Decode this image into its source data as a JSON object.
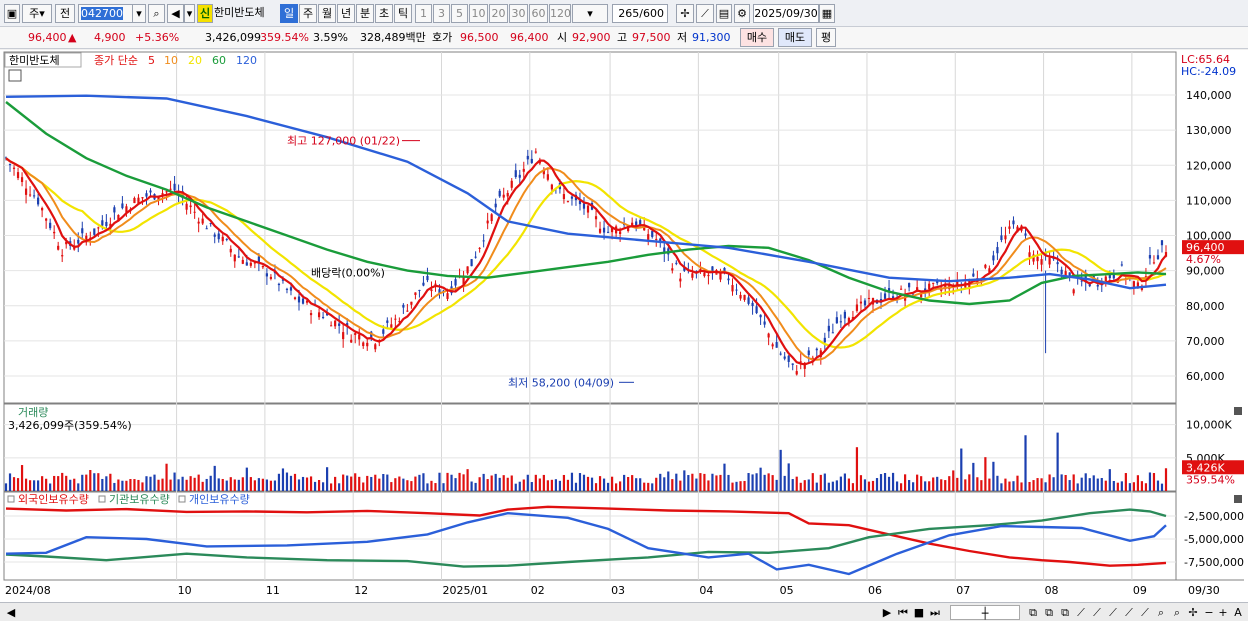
{
  "toolbar": {
    "period_select": "주",
    "prev_button": "전",
    "code_value": "042700",
    "new_badge": "신",
    "stock_name": "한미반도체",
    "tabs": [
      "일",
      "주",
      "월",
      "년",
      "분",
      "초",
      "틱"
    ],
    "active_tab": "일",
    "intervals": [
      "1",
      "3",
      "5",
      "10",
      "20",
      "30",
      "60",
      "120"
    ],
    "count_value": "265",
    "count_total": "/600",
    "date_value": "2025/09/30"
  },
  "quote": {
    "price": "96,400",
    "change": "4,900",
    "change_pct": "+5.36%",
    "volume": "3,426,099",
    "volume_ratio": "359.54%",
    "turnover": "3.59%",
    "amount": "328,489백만",
    "ask_label": "호가",
    "ask": "96,500",
    "bid": "96,400",
    "open_label": "시",
    "open": "92,900",
    "high_label": "고",
    "high": "97,500",
    "low_label": "저",
    "low": "91,300",
    "buy_button": "매수",
    "sell_button": "매도",
    "eval_button": "평"
  },
  "price_panel": {
    "name_tag": "한미반도체",
    "legend_prefix": "종가 단순",
    "ma_labels": [
      "5",
      "10",
      "20",
      "60",
      "120"
    ],
    "lc_label": "LC:65.64",
    "hc_label": "HC:-24.09",
    "y_ticks": [
      "140,000",
      "130,000",
      "120,000",
      "110,000",
      "100,000",
      "90,000",
      "80,000",
      "70,000",
      "60,000"
    ],
    "current_price_tag": "96,400",
    "current_pct_tag": "4.67%",
    "high_annotation": "최고 127,000 (01/22)",
    "low_annotation": "최저 58,200 (04/09)",
    "dividend_annotation": "배당락(0.00%)"
  },
  "volume_panel": {
    "title": "거래량",
    "value": "3,426,099주(359.54%)",
    "y_ticks": [
      "10,000K",
      "5,000K"
    ],
    "current_tag": "3,426K",
    "current_pct_tag": "359.54%"
  },
  "holding_panel": {
    "legend": [
      "외국인보유수량",
      "기관보유수량",
      "개인보유수량"
    ],
    "y_ticks": [
      "-2,500,000",
      "-5,000,000",
      "-7,500,000"
    ]
  },
  "x_axis": [
    "2024/08",
    "10",
    "11",
    "12",
    "2025/01",
    "02",
    "03",
    "04",
    "05",
    "06",
    "07",
    "08",
    "09"
  ],
  "x_axis_end": "09/30",
  "colors": {
    "ma5": "#e01010",
    "ma10": "#f08c1c",
    "ma20": "#f2e400",
    "ma60": "#1a9c3a",
    "ma120": "#2b5fd9",
    "up": "#e01010",
    "down": "#1b3fb0",
    "foreign": "#e01010",
    "inst": "#2b8a5a",
    "retail": "#2b5fd9"
  }
}
